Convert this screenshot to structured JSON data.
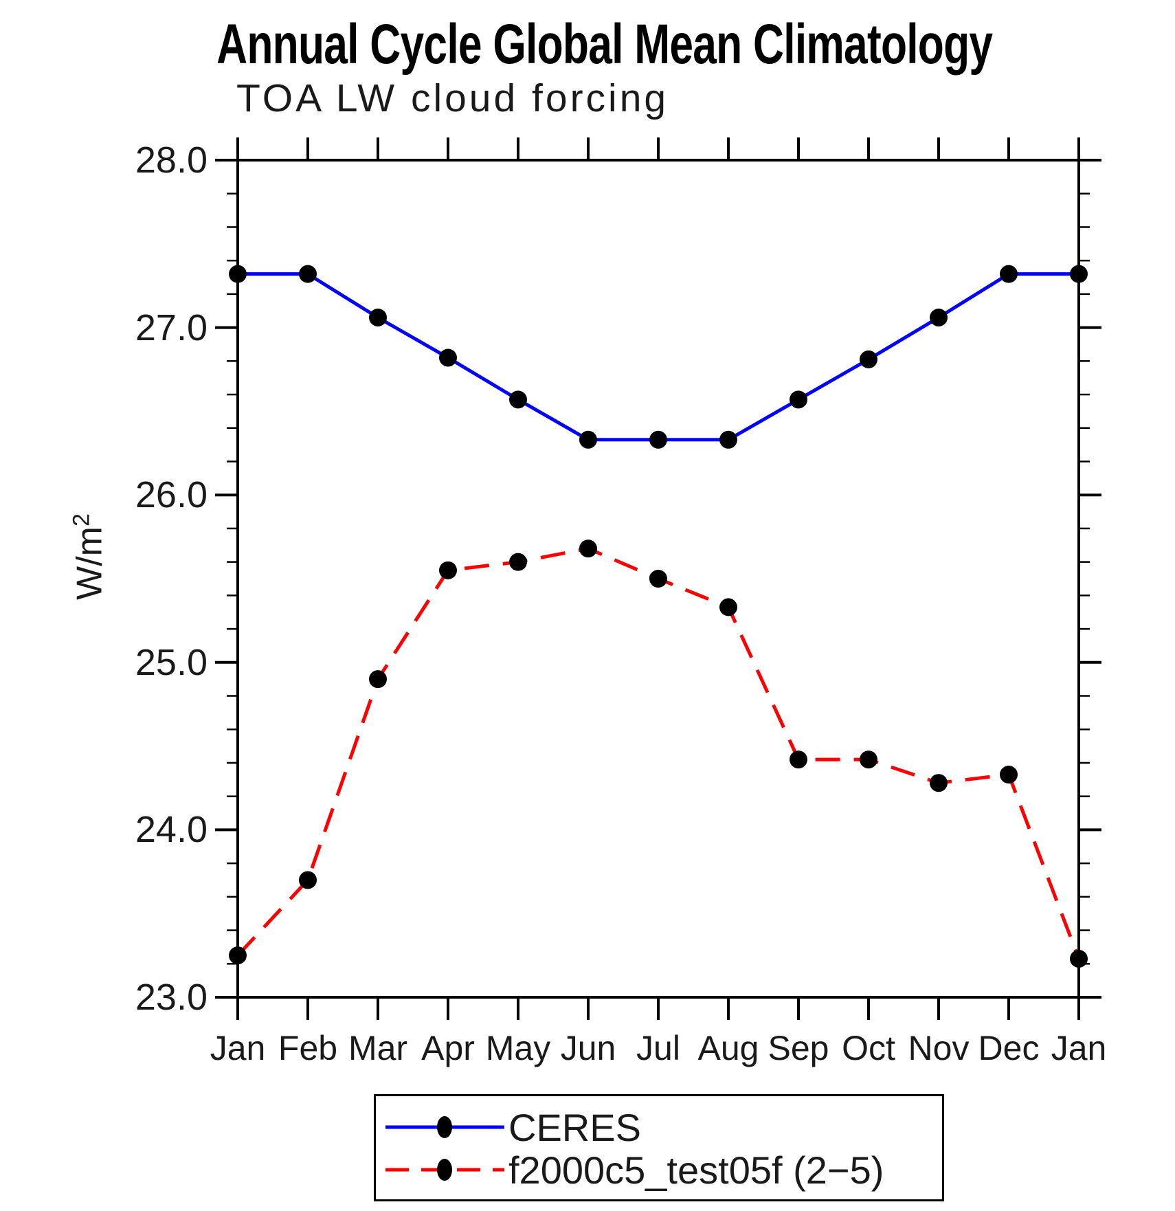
{
  "title": "Annual Cycle Global Mean Climatology",
  "subtitle": "TOA LW cloud forcing",
  "y_axis": {
    "label_base": "W/m",
    "label_sup": "2",
    "tick_labels": [
      "23.0",
      "24.0",
      "25.0",
      "26.0",
      "27.0",
      "28.0"
    ]
  },
  "colors": {
    "ceres_line": "#0000ff",
    "model_line": "#ff0000",
    "marker": "#000000",
    "axis": "#000000"
  },
  "chart_data": {
    "type": "line",
    "title": "Annual Cycle Global Mean Climatology",
    "subtitle": "TOA LW cloud forcing",
    "ylabel": "W/m²",
    "xlabel": "",
    "ylim": [
      23.0,
      28.0
    ],
    "ytick_step": 1.0,
    "yminor_step": 0.2,
    "grid": false,
    "legend_position": "bottom",
    "categories": [
      "Jan",
      "Feb",
      "Mar",
      "Apr",
      "May",
      "Jun",
      "Jul",
      "Aug",
      "Sep",
      "Oct",
      "Nov",
      "Dec",
      "Jan"
    ],
    "series": [
      {
        "name": "CERES",
        "color": "#0000ff",
        "style": "solid",
        "marker": "circle",
        "values": [
          27.32,
          27.32,
          27.06,
          26.82,
          26.57,
          26.33,
          26.33,
          26.33,
          26.57,
          26.81,
          27.06,
          27.32,
          27.32
        ]
      },
      {
        "name": "f2000c5_test05f (2−5)",
        "color": "#ff0000",
        "style": "dashed",
        "marker": "circle",
        "values": [
          23.25,
          23.7,
          24.9,
          25.55,
          25.6,
          25.68,
          25.5,
          25.33,
          24.42,
          24.42,
          24.28,
          24.33,
          23.23
        ]
      }
    ]
  }
}
